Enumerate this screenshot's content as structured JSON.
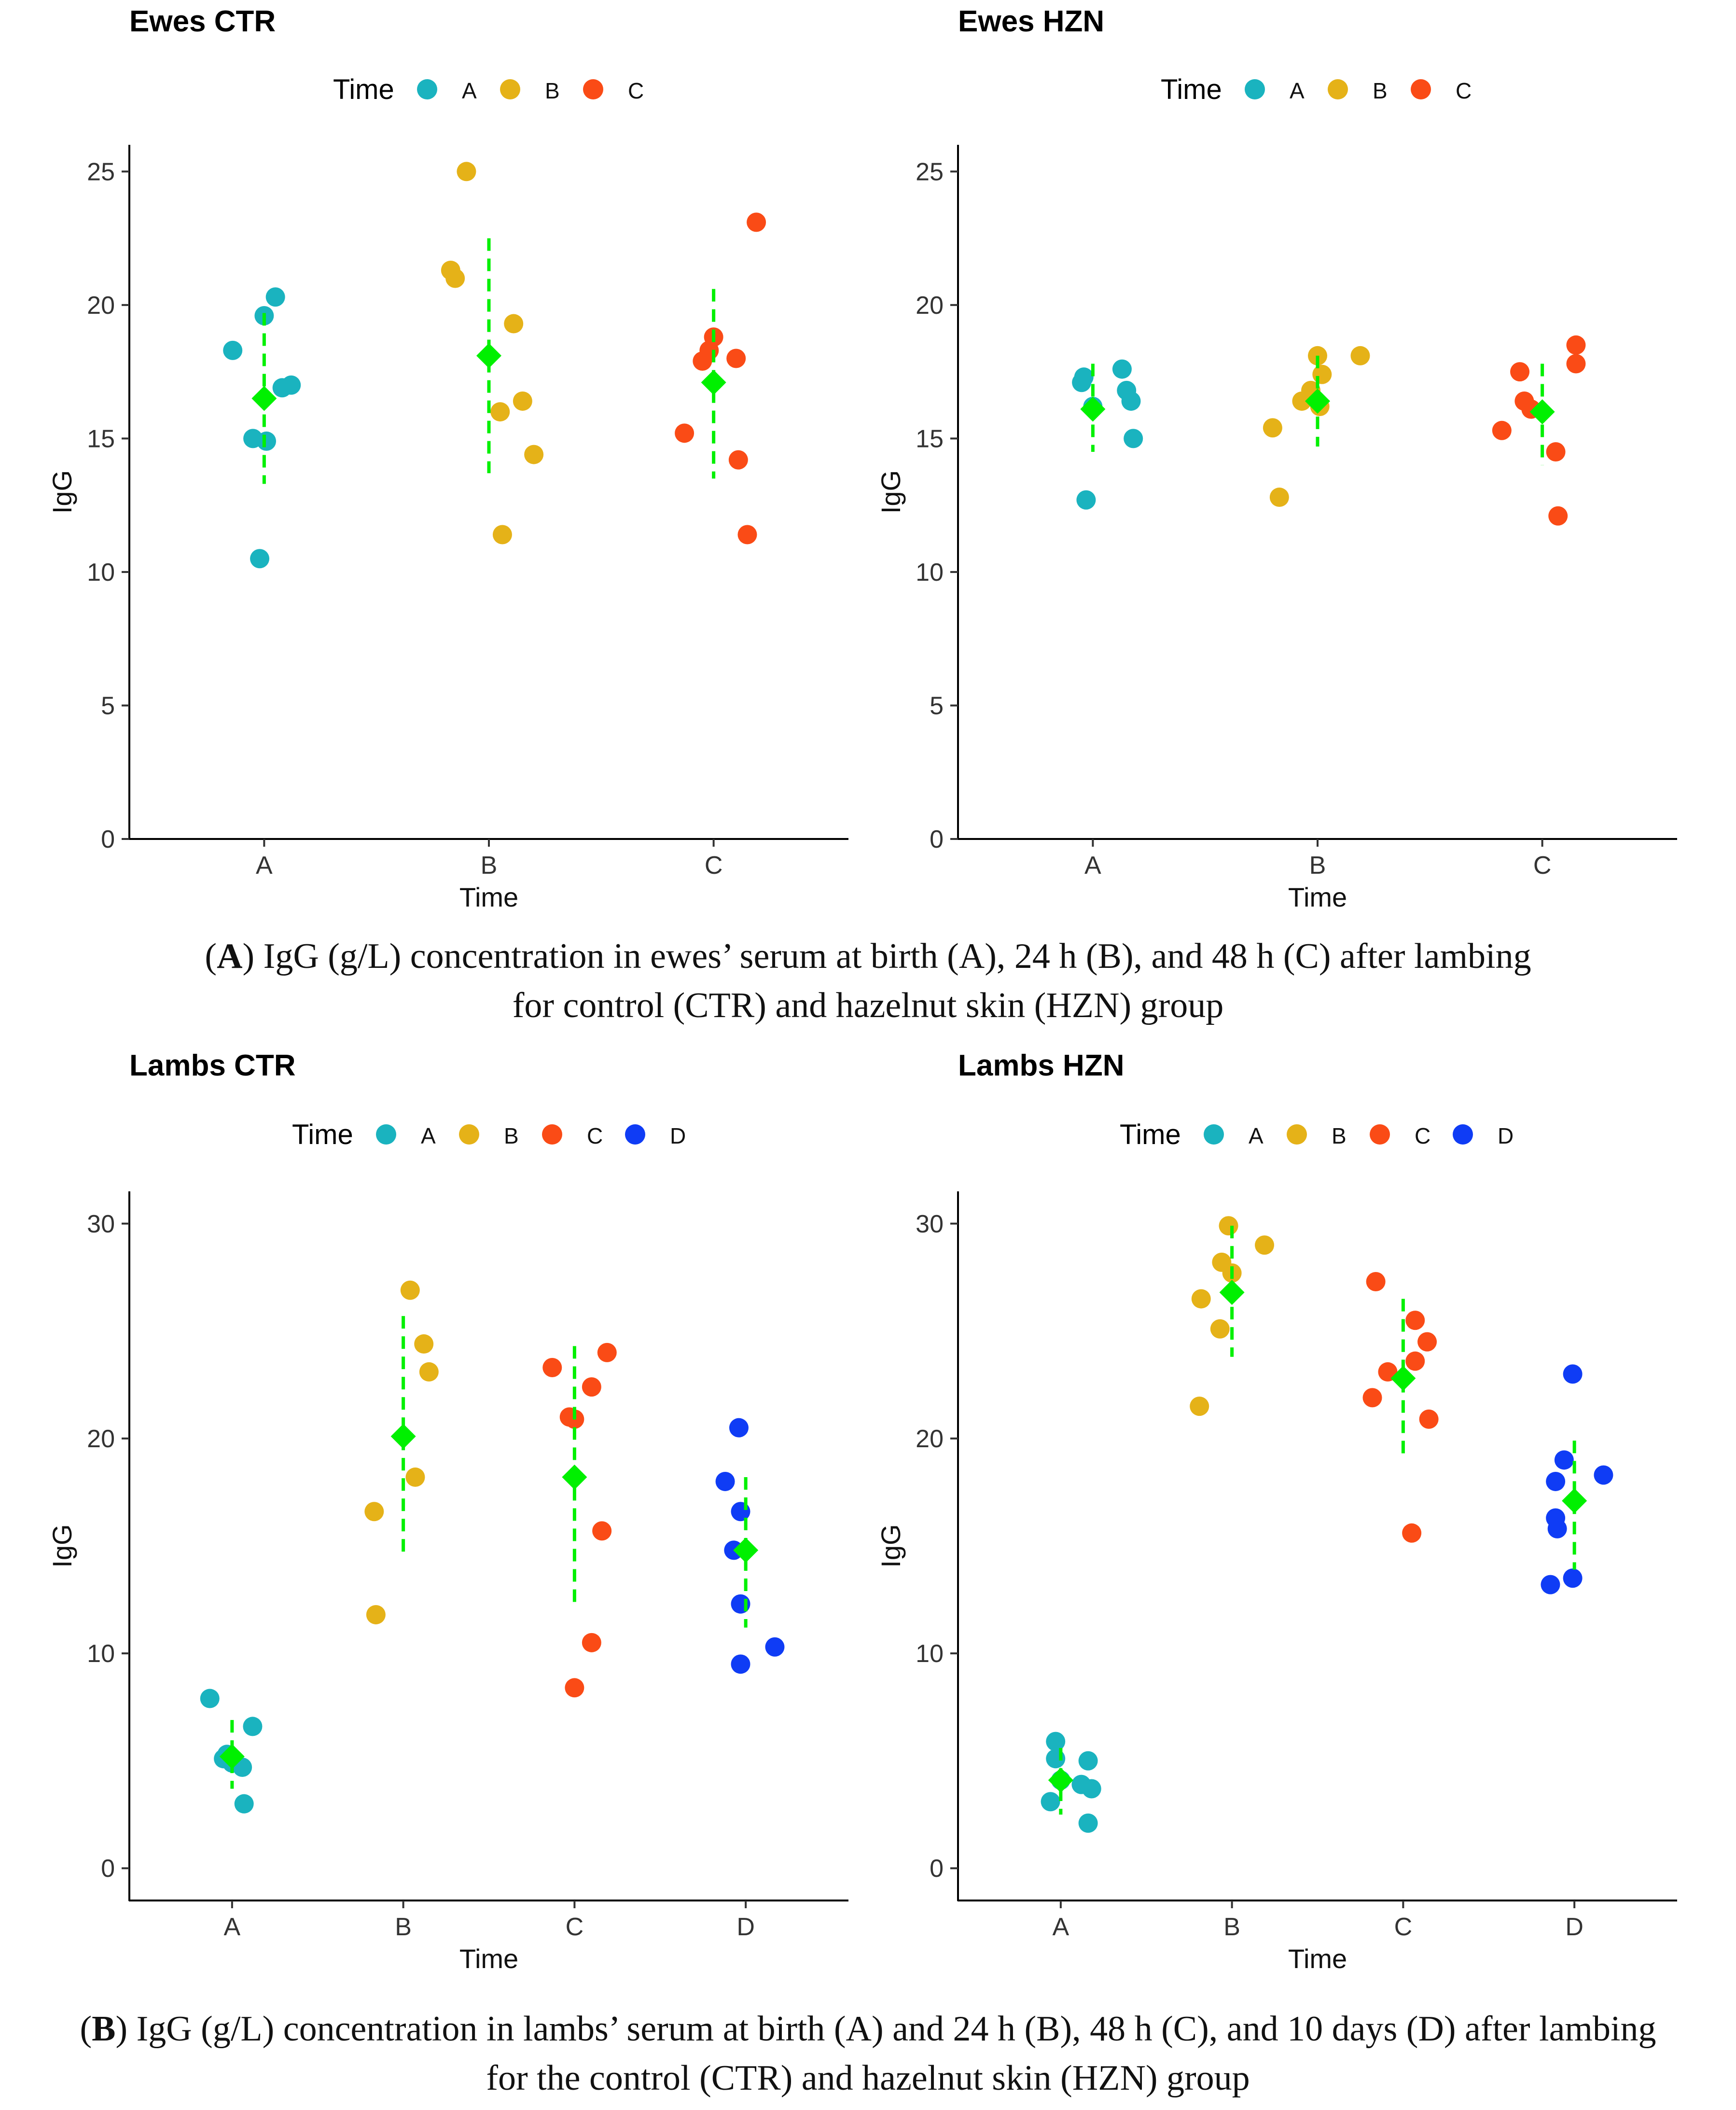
{
  "chart_data": [
    {
      "type": "scatter",
      "title": "Ewes CTR",
      "xlabel": "Time",
      "ylabel": "IgG",
      "legend_title": "Time",
      "legend_placement": "top",
      "categories": [
        "A",
        "B",
        "C"
      ],
      "ylim": [
        0,
        26
      ],
      "yticks": [
        0,
        5,
        10,
        15,
        20,
        25
      ],
      "series": [
        {
          "name": "A",
          "color": "#1ab3bf",
          "points": [
            [
              -0.14,
              18.3
            ],
            [
              0,
              19.6
            ],
            [
              0.05,
              20.3
            ],
            [
              0.08,
              16.9
            ],
            [
              0.12,
              17.0
            ],
            [
              -0.05,
              15.0
            ],
            [
              0.01,
              14.9
            ],
            [
              -0.02,
              10.5
            ]
          ]
        },
        {
          "name": "B",
          "color": "#e5b218",
          "points": [
            [
              -0.17,
              21.3
            ],
            [
              -0.15,
              21.0
            ],
            [
              -0.1,
              25.0
            ],
            [
              0.05,
              16.0
            ],
            [
              0.11,
              19.3
            ],
            [
              0.15,
              16.4
            ],
            [
              0.2,
              14.4
            ],
            [
              0.06,
              11.4
            ]
          ]
        },
        {
          "name": "C",
          "color": "#fa4b16",
          "points": [
            [
              -0.13,
              15.2
            ],
            [
              -0.05,
              17.9
            ],
            [
              -0.02,
              18.3
            ],
            [
              0,
              18.8
            ],
            [
              0.1,
              18.0
            ],
            [
              0.11,
              14.2
            ],
            [
              0.15,
              11.4
            ],
            [
              0.19,
              23.1
            ]
          ]
        }
      ],
      "mean": {
        "color": "#00f000",
        "values": [
          16.5,
          18.1,
          17.1
        ],
        "lower": [
          13.3,
          13.7,
          13.5
        ],
        "upper": [
          19.7,
          22.5,
          20.6
        ]
      }
    },
    {
      "type": "scatter",
      "title": "Ewes HZN",
      "xlabel": "Time",
      "ylabel": "IgG",
      "legend_title": "Time",
      "legend_placement": "top",
      "categories": [
        "A",
        "B",
        "C"
      ],
      "ylim": [
        0,
        26
      ],
      "yticks": [
        0,
        5,
        10,
        15,
        20,
        25
      ],
      "series": [
        {
          "name": "A",
          "color": "#1ab3bf",
          "points": [
            [
              -0.05,
              17.1
            ],
            [
              -0.04,
              17.3
            ],
            [
              0.13,
              17.6
            ],
            [
              0.15,
              16.8
            ],
            [
              0.17,
              16.4
            ],
            [
              0.18,
              15.0
            ],
            [
              -0.03,
              12.7
            ],
            [
              0,
              16.2
            ]
          ]
        },
        {
          "name": "B",
          "color": "#e5b218",
          "points": [
            [
              -0.2,
              15.4
            ],
            [
              -0.17,
              12.8
            ],
            [
              -0.07,
              16.4
            ],
            [
              -0.03,
              16.8
            ],
            [
              0,
              18.1
            ],
            [
              0.02,
              17.4
            ],
            [
              0.19,
              18.1
            ],
            [
              0.01,
              16.2
            ]
          ]
        },
        {
          "name": "C",
          "color": "#fa4b16",
          "points": [
            [
              -0.18,
              15.3
            ],
            [
              -0.1,
              17.5
            ],
            [
              -0.05,
              16.1
            ],
            [
              -0.08,
              16.4
            ],
            [
              0.06,
              14.5
            ],
            [
              0.07,
              12.1
            ],
            [
              0.15,
              18.5
            ],
            [
              0.15,
              17.8
            ]
          ]
        }
      ],
      "mean": {
        "color": "#00f000",
        "values": [
          16.1,
          16.4,
          16.0
        ],
        "lower": [
          14.5,
          14.7,
          14.0
        ],
        "upper": [
          17.8,
          18.1,
          17.8
        ]
      }
    },
    {
      "type": "scatter",
      "title": "Lambs CTR",
      "xlabel": "Time",
      "ylabel": "IgG",
      "legend_title": "Time",
      "legend_placement": "top",
      "categories": [
        "A",
        "B",
        "C",
        "D"
      ],
      "ylim": [
        -1.5,
        31.5
      ],
      "yticks": [
        0,
        10,
        20,
        30
      ],
      "series": [
        {
          "name": "A",
          "color": "#1ab3bf",
          "points": [
            [
              -0.13,
              7.9
            ],
            [
              -0.03,
              5.3
            ],
            [
              0,
              4.9
            ],
            [
              0.06,
              4.7
            ],
            [
              0.12,
              6.6
            ],
            [
              0.07,
              3.0
            ],
            [
              -0.05,
              5.1
            ]
          ]
        },
        {
          "name": "B",
          "color": "#e5b218",
          "points": [
            [
              -0.17,
              16.6
            ],
            [
              -0.16,
              11.8
            ],
            [
              0.04,
              26.9
            ],
            [
              0.12,
              24.4
            ],
            [
              0.15,
              23.1
            ],
            [
              0.07,
              18.2
            ]
          ]
        },
        {
          "name": "C",
          "color": "#fa4b16",
          "points": [
            [
              -0.13,
              23.3
            ],
            [
              -0.03,
              21.0
            ],
            [
              0,
              20.9
            ],
            [
              0.1,
              22.4
            ],
            [
              0.19,
              24.0
            ],
            [
              0.16,
              15.7
            ],
            [
              0.1,
              10.5
            ],
            [
              0,
              8.4
            ]
          ]
        },
        {
          "name": "D",
          "color": "#0f3cf5",
          "points": [
            [
              -0.12,
              18.0
            ],
            [
              -0.07,
              14.8
            ],
            [
              -0.04,
              20.5
            ],
            [
              -0.03,
              16.6
            ],
            [
              -0.03,
              12.3
            ],
            [
              -0.03,
              9.5
            ],
            [
              0.17,
              10.3
            ]
          ]
        }
      ],
      "mean": {
        "color": "#00f000",
        "values": [
          5.2,
          20.1,
          18.2,
          14.8
        ],
        "lower": [
          3.7,
          14.5,
          12.2,
          11.2
        ],
        "upper": [
          6.9,
          25.7,
          24.3,
          18.2
        ]
      }
    },
    {
      "type": "scatter",
      "title": "Lambs HZN",
      "xlabel": "Time",
      "ylabel": "IgG",
      "legend_title": "Time",
      "legend_placement": "top",
      "categories": [
        "A",
        "B",
        "C",
        "D"
      ],
      "ylim": [
        -1.5,
        31.5
      ],
      "yticks": [
        0,
        10,
        20,
        30
      ],
      "series": [
        {
          "name": "A",
          "color": "#1ab3bf",
          "points": [
            [
              -0.03,
              5.9
            ],
            [
              -0.03,
              5.1
            ],
            [
              0.16,
              5.0
            ],
            [
              0.12,
              3.9
            ],
            [
              0.18,
              3.7
            ],
            [
              -0.06,
              3.1
            ],
            [
              0.16,
              2.1
            ],
            [
              0,
              4.1
            ]
          ]
        },
        {
          "name": "B",
          "color": "#e5b218",
          "points": [
            [
              -0.18,
              26.5
            ],
            [
              -0.06,
              28.2
            ],
            [
              -0.02,
              29.9
            ],
            [
              0,
              27.7
            ],
            [
              0.19,
              29.0
            ],
            [
              -0.07,
              25.1
            ],
            [
              -0.19,
              21.5
            ]
          ]
        },
        {
          "name": "C",
          "color": "#fa4b16",
          "points": [
            [
              -0.16,
              27.3
            ],
            [
              -0.09,
              23.1
            ],
            [
              -0.18,
              21.9
            ],
            [
              0.07,
              25.5
            ],
            [
              0.07,
              23.6
            ],
            [
              0.14,
              24.5
            ],
            [
              0.15,
              20.9
            ],
            [
              0.05,
              15.6
            ]
          ]
        },
        {
          "name": "D",
          "color": "#0f3cf5",
          "points": [
            [
              -0.11,
              18.0
            ],
            [
              -0.11,
              16.3
            ],
            [
              -0.1,
              15.8
            ],
            [
              -0.14,
              13.2
            ],
            [
              -0.01,
              13.5
            ],
            [
              -0.06,
              19.0
            ],
            [
              -0.01,
              23.0
            ],
            [
              0.17,
              18.3
            ]
          ]
        }
      ],
      "mean": {
        "color": "#00f000",
        "values": [
          4.1,
          26.8,
          22.8,
          17.1
        ],
        "lower": [
          2.5,
          23.8,
          19.1,
          13.9
        ],
        "upper": [
          5.6,
          29.9,
          26.5,
          19.9
        ]
      }
    }
  ],
  "captions": {
    "a": {
      "letter": "A",
      "line1": ") IgG (g/L) concentration in ewes’ serum at birth (A), 24 h (B), and 48 h (C) after lambing",
      "line2": "for control (CTR) and hazelnut skin (HZN) group"
    },
    "b": {
      "letter": "B",
      "line1": ") IgG (g/L) concentration in lambs’ serum at birth (A) and 24 h (B), 48 h (C), and 10 days (D) after lambing",
      "line2": "for the control (CTR) and hazelnut skin (HZN) group"
    }
  }
}
